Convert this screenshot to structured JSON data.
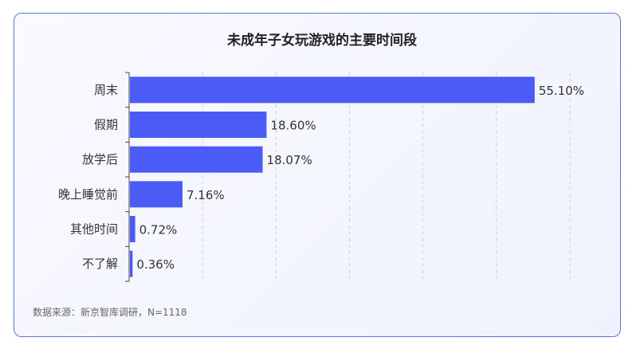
{
  "chart_data": {
    "type": "bar",
    "orientation": "horizontal",
    "title": "未成年子女玩游戏的主要时间段",
    "categories": [
      "周末",
      "假期",
      "放学后",
      "晚上睡觉前",
      "其他时间",
      "不了解"
    ],
    "values": [
      55.1,
      18.6,
      18.07,
      7.16,
      0.72,
      0.36
    ],
    "value_labels": [
      "55.10%",
      "18.60%",
      "18.07%",
      "7.16%",
      "0.72%",
      "0.36%"
    ],
    "xlim": [
      0,
      60
    ],
    "grid": "vertical-dashed",
    "bar_color": "#4a5cf5",
    "source": "数据来源：新京智库调研，N=1118"
  }
}
